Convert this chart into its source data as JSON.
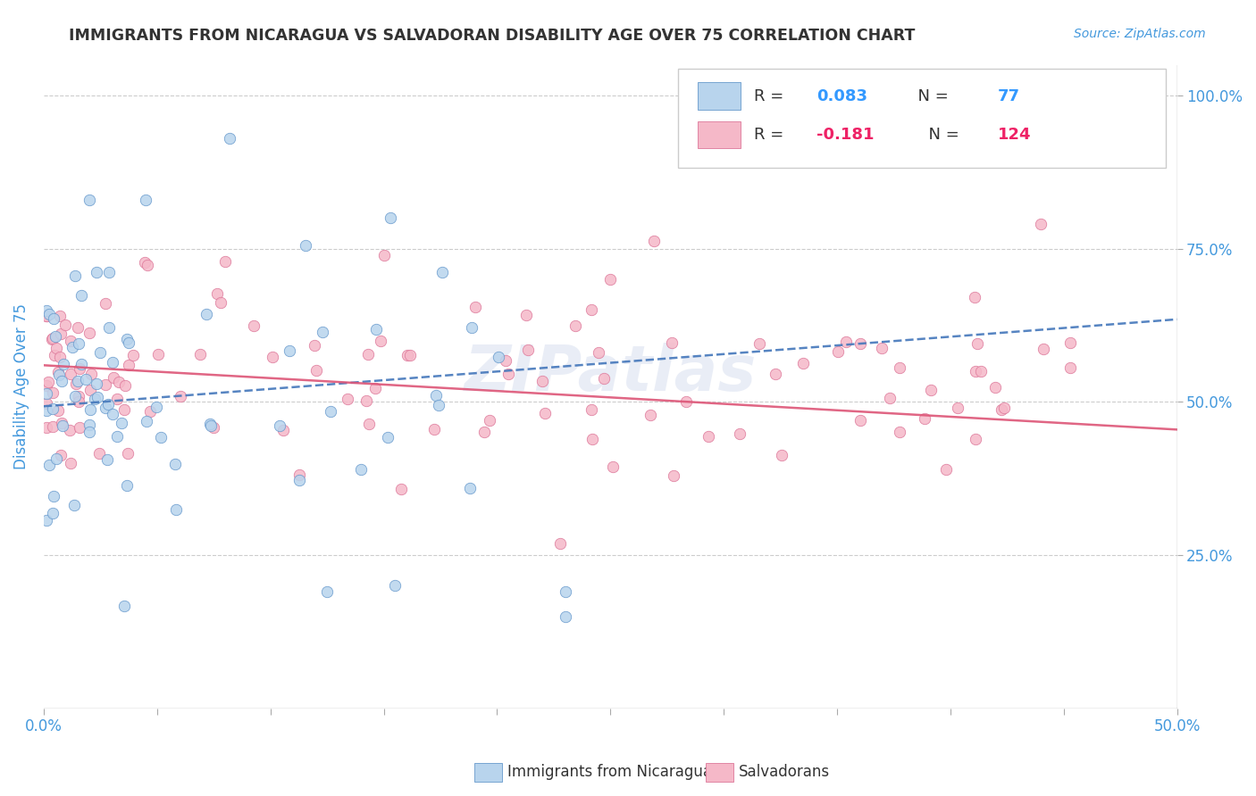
{
  "title": "IMMIGRANTS FROM NICARAGUA VS SALVADORAN DISABILITY AGE OVER 75 CORRELATION CHART",
  "source": "Source: ZipAtlas.com",
  "ylabel": "Disability Age Over 75",
  "xlim": [
    0.0,
    0.5
  ],
  "ylim": [
    0.0,
    1.05
  ],
  "xtick_labels_edge": [
    "0.0%",
    "50.0%"
  ],
  "xtick_values_edge": [
    0.0,
    0.5
  ],
  "ytick_labels": [
    "25.0%",
    "50.0%",
    "75.0%",
    "100.0%"
  ],
  "ytick_values": [
    0.25,
    0.5,
    0.75,
    1.0
  ],
  "legend_label1": "Immigrants from Nicaragua",
  "legend_label2": "Salvadorans",
  "R1": "0.083",
  "N1": "77",
  "R2": "-0.181",
  "N2": "124",
  "color1_fill": "#b8d4ed",
  "color1_edge": "#6699cc",
  "color2_fill": "#f5b8c8",
  "color2_edge": "#dd7799",
  "line_color1": "#4477bb",
  "line_color2": "#dd5577",
  "watermark": "ZIPatlas",
  "title_color": "#333333",
  "source_color": "#4499dd",
  "axis_label_color": "#4499dd",
  "tick_color": "#4499dd",
  "legend_R_color1": "#3399ff",
  "legend_R_color2": "#ee2266",
  "grid_color": "#cccccc",
  "border_color": "#aaaaaa",
  "line1_x0": 0.0,
  "line1_y0": 0.493,
  "line1_x1": 0.5,
  "line1_y1": 0.635,
  "line2_x0": 0.0,
  "line2_y0": 0.56,
  "line2_x1": 0.5,
  "line2_y1": 0.455
}
